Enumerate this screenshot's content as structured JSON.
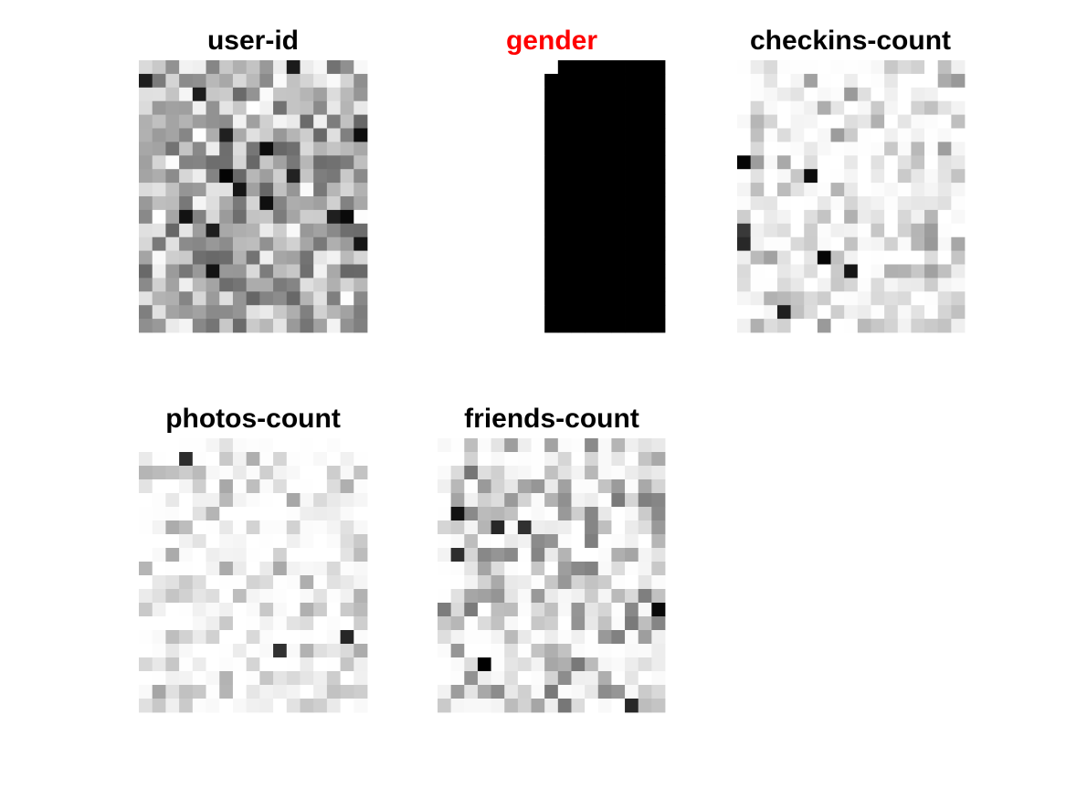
{
  "figure": {
    "background": "#ffffff",
    "colormap": "gray (white = low, black = high)"
  },
  "chart_data": [
    {
      "type": "heatmap",
      "title": "user-id",
      "title_color": "#000000",
      "rows": 20,
      "cols": 17,
      "value_range": [
        0,
        1
      ],
      "fill": "dense-random-gray",
      "seed": 11
    },
    {
      "type": "heatmap",
      "title": "gender",
      "title_color": "#ff0000",
      "rows": 20,
      "cols": 17,
      "value_range": [
        0,
        1
      ],
      "fill": "binary",
      "note_pattern": "columns 0-7 white in all rows; columns 8-16 black except row 0-1 column 8 white"
    },
    {
      "type": "heatmap",
      "title": "checkins-count",
      "title_color": "#000000",
      "rows": 20,
      "cols": 17,
      "value_range": [
        0,
        1
      ],
      "fill": "sparse-light-gray",
      "seed": 23
    },
    {
      "type": "heatmap",
      "title": "photos-count",
      "title_color": "#000000",
      "rows": 20,
      "cols": 17,
      "value_range": [
        0,
        1
      ],
      "fill": "very-sparse-light-gray",
      "seed": 37
    },
    {
      "type": "heatmap",
      "title": "friends-count",
      "title_color": "#000000",
      "rows": 20,
      "cols": 17,
      "value_range": [
        0,
        1
      ],
      "fill": "medium-sparse-gray",
      "seed": 53
    }
  ]
}
